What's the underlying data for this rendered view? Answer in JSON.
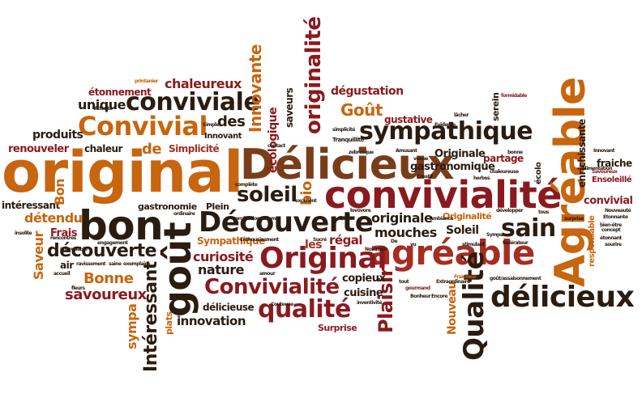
{
  "colors": {
    "dark_brown": "#2b1c10",
    "orange": "#c8650f",
    "crimson": "#8a1a1f",
    "red": "#a62d23",
    "brown": "#7a3d1a",
    "light_orange": "#d17a25"
  },
  "words": {
    "original": "original",
    "delicieux_cap": "Délicieux",
    "convivialite": "convivialité",
    "bon": "bon",
    "gout": "goût",
    "decouverte_cap": "Découverte",
    "agreable": "agréable",
    "agreable_cap": "Agréable",
    "original_cap": "Original",
    "sympathique": "sympathique",
    "convivial_cap": "Convivial",
    "conviviale": "conviviale",
    "delicieux": "délicieux",
    "qualite_cap": "Qualité",
    "qualite": "qualité",
    "convivialite_cap": "Convivialité",
    "originalite": "originalité",
    "soleil": "soleil",
    "sain": "sain",
    "decouverte": "découverte",
    "interessant_cap": "Intéressant",
    "plaisir": "Plaisir",
    "innovante": "Innovante",
    "chaleureux": "chaleureux",
    "unique": "unique",
    "gout_cap": "Goût",
    "degustation": "dégustation",
    "des": "des",
    "de": "de",
    "produits": "produits",
    "renouveler": "renouveler",
    "chaleur": "chaleur",
    "simplicite": "Simplicité",
    "bio": "bio",
    "ecologique": "écologique",
    "saveurs": "saveurs",
    "etonnement": "étonnement",
    "detendu": "détendu",
    "interessant": "intéressant",
    "bon_cap": "Bon",
    "frais": "Frais",
    "gastronomie": "gastronomie",
    "plein": "Plein",
    "saveur": "Saveur",
    "bonne": "Bonne",
    "savoureux": "savoureux",
    "sympa": "sympa",
    "plats": "plats",
    "curiosite": "curiosité",
    "nature": "nature",
    "sympathique_cap": "Sympathique",
    "delicieuse": "délicieuse",
    "innovation": "innovation",
    "les": "les",
    "regal": "régal",
    "mouches": "mouches",
    "originale": "originale",
    "copieux": "copieux",
    "cuisine": "cuisine",
    "surprise": "Surprise",
    "nouveau": "Nouveau",
    "gastronomique": "gastronomique",
    "originale_cap": "Originale",
    "soleil_cap": "Soleil",
    "originalite_cap": "Originalité",
    "partage": "partage",
    "gustative": "gustative",
    "serein": "serein",
    "fraiche": "fraiche",
    "enrichissante": "enrichissante",
    "responsable": "responsable",
    "ensoleille": "Ensoleillé",
    "convivial": "convivial",
    "innovant": "Innovant",
    "ecolo": "écolo",
    "tranquillite": "Tranquillité",
    "simplicite_small": "simplicité",
    "evidente": "Evidente",
    "lacher": "lâcher",
    "printanier": "printanier",
    "gourmand": "gourmand",
    "fraicheur": "Fraicheur",
    "venue": "venue",
    "herbes": "herbes",
    "chaleureuse": "chaleureuse",
    "concept": "concept",
    "formidable": "formidable",
    "savoureux_small": "Savoureux",
    "etonnante": "Etonnante",
    "nouveaute": "Nouveauté",
    "surprise_small": "surprise",
    "developper": "développer",
    "bien_etre": "bien-être",
    "sourire": "sourire",
    "etonnant": "étonnant",
    "alimentation": "alimentation",
    "federateur": "fédérateur",
    "stimulant": "stimulant",
    "ambiance": "Ambiance",
    "gout_assaisonnement": "goût/assaisonnement",
    "extraordinaire": "Extraordinaire",
    "bonheur": "Bonheur",
    "encore": "Encore",
    "amour": "amour",
    "inventivite": "inventivité",
    "enthousiasment": "Enthousiasment",
    "engagement": "engagement",
    "rencontres": "rencontres",
    "insolite": "insolite",
    "accueil": "accueil",
    "fleurs": "fleurs",
    "saine": "saine",
    "exemplaire": "exemplaire",
    "ravissement": "ravissement",
    "improbable": "improbable",
    "excellent": "excellent",
    "attente": "Attente",
    "simple": "Simple",
    "professionnalisme": "professionnalisme",
    "complete": "complète",
    "contact": "contact",
    "zebresque": "zebresque",
    "amusant": "Amusant",
    "creatif": "Créatif",
    "bonne_small": "bonne",
    "vu": "vu",
    "tout": "tout",
    "air": "air",
    "sucre": "Sucré",
    "coutume": "Couteuse",
    "loisir": "loisir",
    "lovevore": "lovovore",
    "novateur": "Novateur",
    "ordinaire": "ordinaire",
    "sympa_cap": "Sympa",
    "tous": "tous",
    "dents": "De"
  }
}
